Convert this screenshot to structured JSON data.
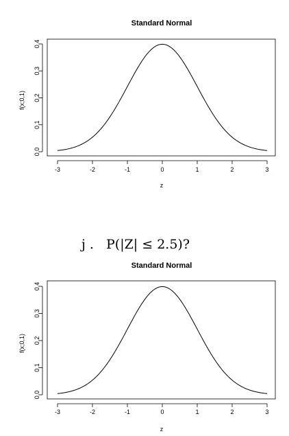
{
  "question": {
    "label": "j .",
    "text": "P(|Z| ≤ 2.5)?"
  },
  "chart_data": [
    {
      "type": "line",
      "title": "Standard Normal",
      "xlabel": "z",
      "ylabel": "f(x;0,1)",
      "xlim": [
        -3,
        3
      ],
      "ylim": [
        0,
        0.4
      ],
      "xticks": [
        "-3",
        "-2",
        "-1",
        "0",
        "1",
        "2",
        "3"
      ],
      "yticks": [
        "0.0",
        "0.1",
        "0.2",
        "0.3",
        "0.4"
      ],
      "function": "normal_pdf",
      "mean": 0,
      "sd": 1,
      "series": [
        {
          "x": [
            -3,
            -2.5,
            -2,
            -1.5,
            -1,
            -0.5,
            0,
            0.5,
            1,
            1.5,
            2,
            2.5,
            3
          ],
          "y": [
            0.0044,
            0.0175,
            0.054,
            0.1295,
            0.242,
            0.3521,
            0.3989,
            0.3521,
            0.242,
            0.1295,
            0.054,
            0.0175,
            0.0044
          ]
        }
      ],
      "grid": false,
      "legend": "none"
    },
    {
      "type": "line",
      "title": "Standard Normal",
      "xlabel": "z",
      "ylabel": "f(x;0,1)",
      "xlim": [
        -3,
        3
      ],
      "ylim": [
        0,
        0.4
      ],
      "xticks": [
        "-3",
        "-2",
        "-1",
        "0",
        "1",
        "2",
        "3"
      ],
      "yticks": [
        "0.0",
        "0.1",
        "0.2",
        "0.3",
        "0.4"
      ],
      "function": "normal_pdf",
      "mean": 0,
      "sd": 1,
      "series": [
        {
          "x": [
            -3,
            -2.5,
            -2,
            -1.5,
            -1,
            -0.5,
            0,
            0.5,
            1,
            1.5,
            2,
            2.5,
            3
          ],
          "y": [
            0.0044,
            0.0175,
            0.054,
            0.1295,
            0.242,
            0.3521,
            0.3989,
            0.3521,
            0.242,
            0.1295,
            0.054,
            0.0175,
            0.0044
          ]
        }
      ],
      "grid": false,
      "legend": "none"
    }
  ]
}
